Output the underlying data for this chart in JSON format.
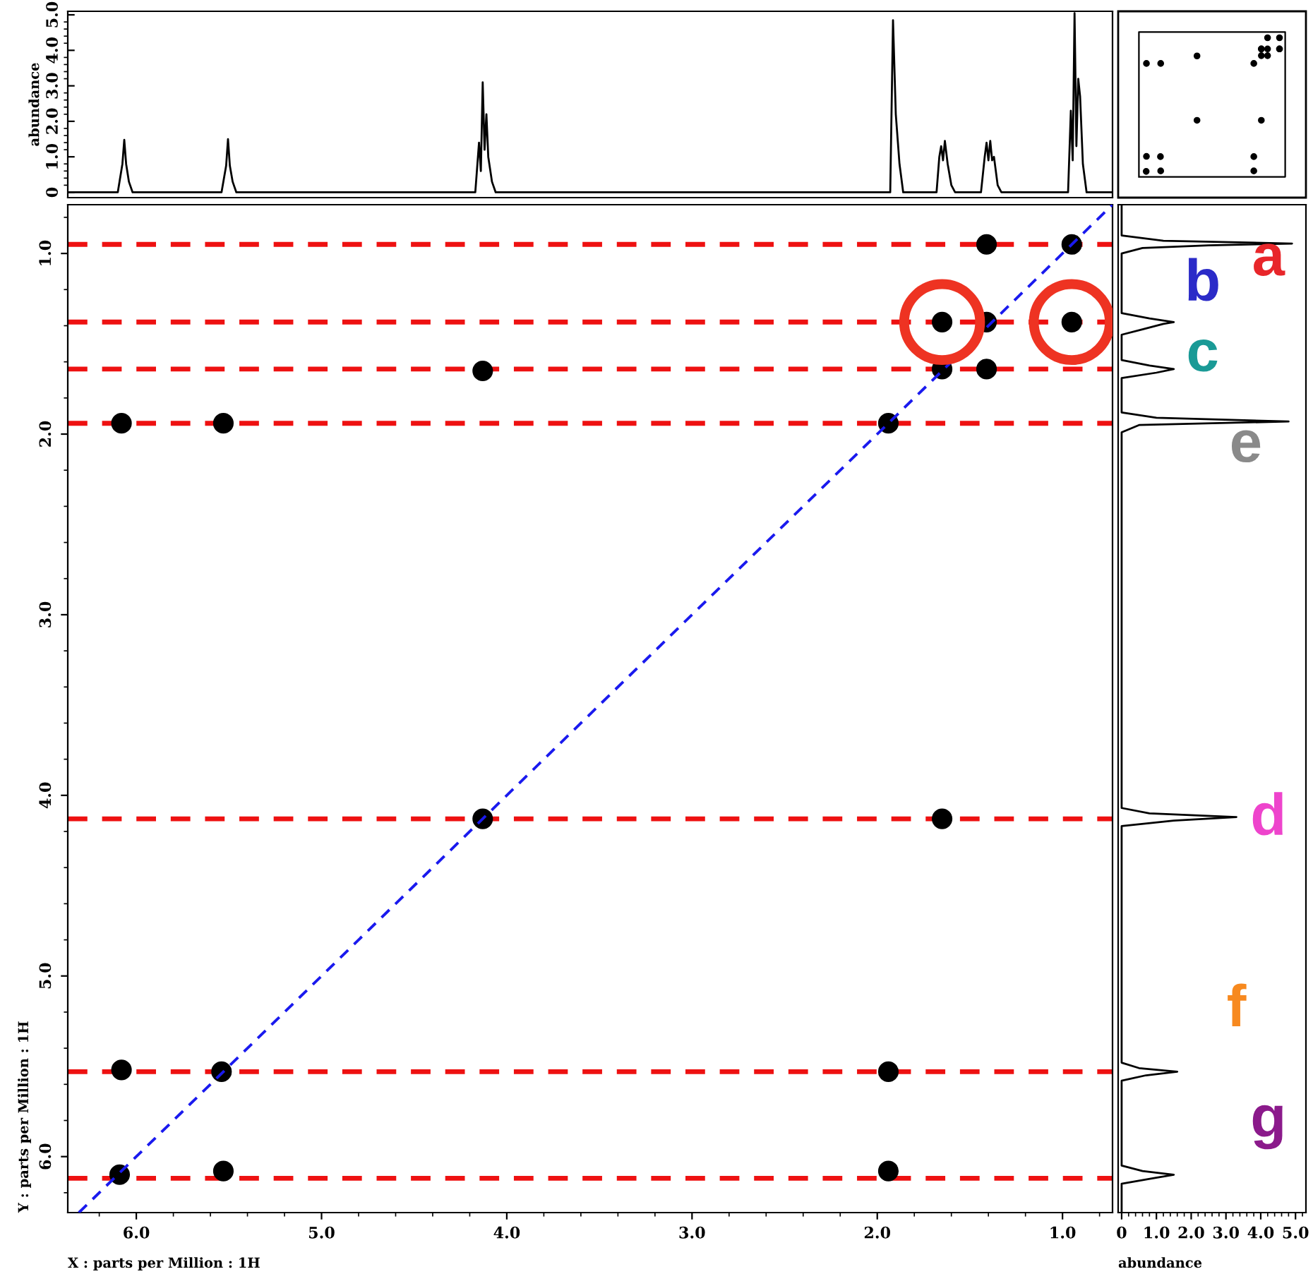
{
  "chart_data": [
    {
      "type": "line",
      "ylabel": "abundance",
      "xlim": [
        6.37,
        0.73
      ],
      "ylim": [
        -0.15,
        5.1
      ],
      "yticks": [
        0,
        {
          "value": 1,
          "label": "1.0"
        },
        {
          "value": 2,
          "label": "2.0"
        },
        {
          "value": 3,
          "label": "3.0"
        },
        {
          "value": 4,
          "label": "4.0"
        },
        {
          "value": 5,
          "label": "5.0"
        }
      ],
      "tick_labels": "y",
      "grid": false,
      "legend": false,
      "series": [
        {
          "color": "#000000",
          "x": [
            6.37,
            6.1,
            6.075,
            6.065,
            6.055,
            6.04,
            6.02,
            5.54,
            5.515,
            5.505,
            5.495,
            5.48,
            5.46,
            4.17,
            4.15,
            4.14,
            4.13,
            4.12,
            4.11,
            4.1,
            4.08,
            4.06,
            1.93,
            1.915,
            1.9,
            1.88,
            1.86,
            1.68,
            1.665,
            1.655,
            1.645,
            1.635,
            1.62,
            1.6,
            1.58,
            1.44,
            1.42,
            1.41,
            1.4,
            1.39,
            1.38,
            1.37,
            1.35,
            1.33,
            0.97,
            0.955,
            0.945,
            0.935,
            0.925,
            0.915,
            0.905,
            0.89,
            0.87,
            0.73
          ],
          "values": [
            0,
            0,
            0.8,
            1.48,
            0.8,
            0.3,
            0,
            0,
            0.75,
            1.5,
            0.75,
            0.3,
            0,
            0,
            1.4,
            0.6,
            3.1,
            1.2,
            2.2,
            1.0,
            0.3,
            0,
            0,
            4.85,
            2.2,
            0.8,
            0,
            0,
            1.0,
            1.3,
            0.9,
            1.45,
            0.8,
            0.2,
            0,
            0,
            1.0,
            1.4,
            0.9,
            1.45,
            0.9,
            1.0,
            0.2,
            0,
            0,
            2.3,
            0.9,
            5.05,
            1.3,
            3.2,
            2.7,
            0.8,
            0,
            0
          ]
        }
      ]
    },
    {
      "type": "scatter",
      "xlabel": "X : parts per Million : 1H",
      "ylabel": "Y : parts per Million : 1H",
      "xlim": [
        6.37,
        0.73
      ],
      "ylim": [
        6.31,
        0.73
      ],
      "xticks": [
        {
          "value": 6,
          "label": "6.0"
        },
        {
          "value": 5,
          "label": "5.0"
        },
        {
          "value": 4,
          "label": "4.0"
        },
        {
          "value": 3,
          "label": "3.0"
        },
        {
          "value": 2,
          "label": "2.0"
        },
        {
          "value": 1,
          "label": "1.0"
        }
      ],
      "yticks": [
        {
          "value": 1,
          "label": "1.0"
        },
        {
          "value": 2,
          "label": "2.0"
        },
        {
          "value": 3,
          "label": "3.0"
        },
        {
          "value": 4,
          "label": "4.0"
        },
        {
          "value": 5,
          "label": "5.0"
        },
        {
          "value": 6,
          "label": "6.0"
        }
      ],
      "grid": false,
      "legend": false,
      "series": [
        {
          "type": "scatter",
          "color": "#000000",
          "marker": "circle",
          "x": [
            0.95,
            1.41,
            1.65,
            1.94,
            4.13,
            5.54,
            6.09,
            1.41,
            0.95,
            1.65,
            1.41,
            4.13,
            1.65,
            6.08,
            5.53,
            1.94,
            6.08,
            5.53,
            1.94
          ],
          "values": [
            0.95,
            1.38,
            1.64,
            1.94,
            4.13,
            5.53,
            6.1,
            0.95,
            1.38,
            1.38,
            1.64,
            1.65,
            4.13,
            1.94,
            1.94,
            5.53,
            5.52,
            6.08,
            6.08
          ]
        },
        {
          "type": "line",
          "color": "#1a1aee",
          "line_style": "dashed",
          "marker": "none",
          "x": [
            6.31,
            0.73
          ],
          "values": [
            6.31,
            0.73
          ]
        },
        {
          "type": "scatter",
          "color": "#ee3322",
          "marker": "circle",
          "line_style": "solid",
          "x": [
            1.65,
            0.95
          ],
          "values": [
            1.38,
            1.38
          ]
        }
      ],
      "ref_lines": [
        {
          "axis": "y",
          "value": 0.95,
          "color": "#ee1111",
          "line_style": "dashed"
        },
        {
          "axis": "y",
          "value": 1.38,
          "color": "#ee1111",
          "line_style": "dashed"
        },
        {
          "axis": "y",
          "value": 1.64,
          "color": "#ee1111",
          "line_style": "dashed"
        },
        {
          "axis": "y",
          "value": 1.94,
          "color": "#ee1111",
          "line_style": "dashed"
        },
        {
          "axis": "y",
          "value": 4.13,
          "color": "#ee1111",
          "line_style": "dashed"
        },
        {
          "axis": "y",
          "value": 5.53,
          "color": "#ee1111",
          "line_style": "dashed"
        },
        {
          "axis": "y",
          "value": 6.12,
          "color": "#ee1111",
          "line_style": "dashed"
        }
      ]
    },
    {
      "type": "line",
      "orientation": "horizontal",
      "xlabel": "abundance",
      "xlim": [
        -0.1,
        5.3
      ],
      "ylim": [
        6.31,
        0.73
      ],
      "xticks": [
        0,
        {
          "value": 1,
          "label": "1.0"
        },
        {
          "value": 2,
          "label": "2.0"
        },
        {
          "value": 3,
          "label": "3.0"
        },
        {
          "value": 4,
          "label": "4.0"
        },
        {
          "value": 5,
          "label": "5.0"
        }
      ],
      "tick_labels": "x",
      "grid": false,
      "legend": false,
      "series": [
        {
          "color": "#000000",
          "x": [
            0.73,
            0.9,
            0.93,
            0.945,
            0.955,
            0.97,
            1.0,
            1.33,
            1.36,
            1.38,
            1.39,
            1.42,
            1.45,
            1.59,
            1.62,
            1.64,
            1.66,
            1.69,
            1.88,
            1.91,
            1.93,
            1.95,
            1.99,
            4.07,
            4.1,
            4.12,
            4.14,
            4.17,
            5.48,
            5.51,
            5.53,
            5.55,
            5.58,
            6.05,
            6.08,
            6.1,
            6.12,
            6.15,
            6.31
          ],
          "values": [
            0,
            0,
            1.2,
            4.9,
            2.5,
            0.6,
            0,
            0,
            0.8,
            1.5,
            1.2,
            0.6,
            0,
            0,
            0.8,
            1.5,
            1.0,
            0,
            0,
            1.0,
            4.8,
            0.5,
            0,
            0,
            0.8,
            3.3,
            1.5,
            0,
            0,
            0.5,
            1.6,
            0.7,
            0,
            0,
            0.6,
            1.5,
            0.9,
            0,
            0
          ]
        }
      ],
      "annotations": [
        "a",
        "b",
        "c",
        "e",
        "d",
        "f",
        "g"
      ]
    }
  ]
}
